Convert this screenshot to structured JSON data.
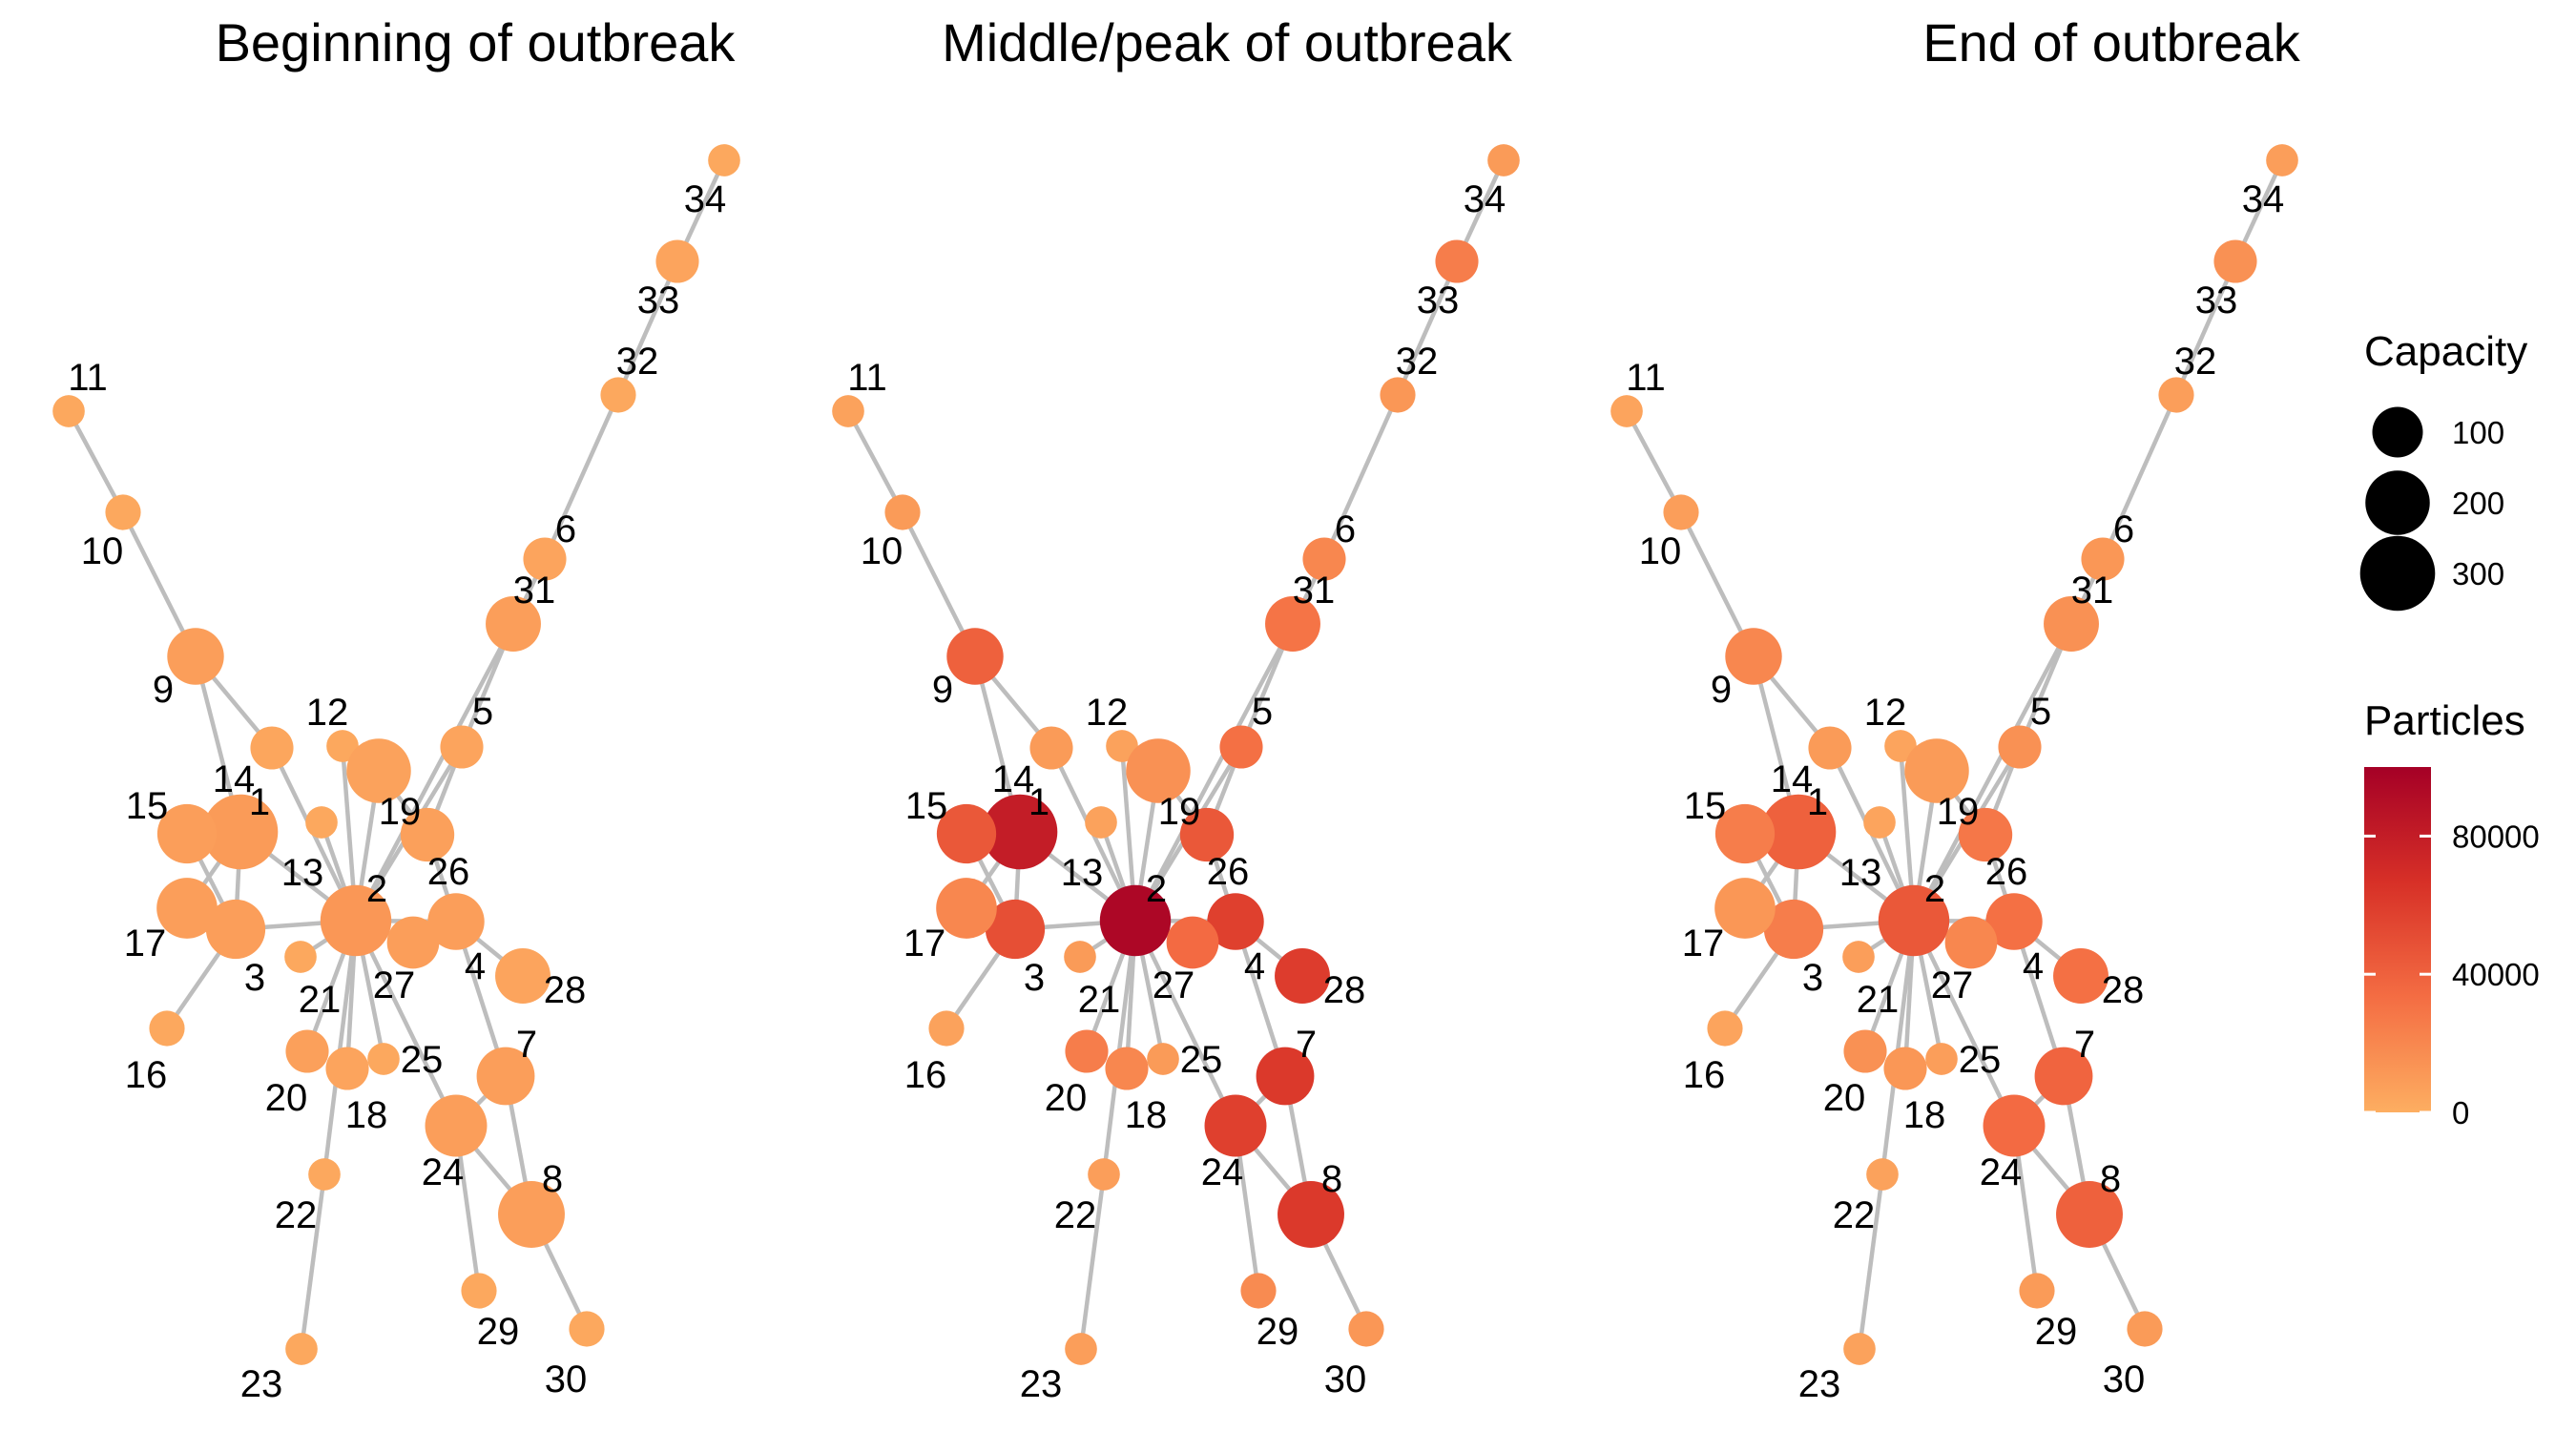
{
  "panels": [
    {
      "key": "beginning",
      "title": "Beginning of outbreak",
      "particles": {
        "1": 10000,
        "2": 12000,
        "3": 8000,
        "4": 8000,
        "5": 5000,
        "6": 5000,
        "7": 8000,
        "8": 8000,
        "9": 8000,
        "10": 3000,
        "11": 3000,
        "12": 3000,
        "13": 3000,
        "14": 4000,
        "15": 8000,
        "16": 3000,
        "17": 8000,
        "18": 5000,
        "19": 6000,
        "20": 7000,
        "21": 3000,
        "22": 3000,
        "23": 3000,
        "24": 8000,
        "25": 3000,
        "26": 7000,
        "27": 8000,
        "28": 5000,
        "29": 3000,
        "30": 3000,
        "31": 8000,
        "32": 3000,
        "33": 5000,
        "34": 3000
      }
    },
    {
      "key": "middle",
      "title": "Middle/peak of outbreak",
      "particles": {
        "1": 80000,
        "2": 95000,
        "3": 50000,
        "4": 58000,
        "5": 32000,
        "6": 20000,
        "7": 62000,
        "8": 62000,
        "9": 40000,
        "10": 10000,
        "11": 6000,
        "12": 6000,
        "13": 6000,
        "14": 10000,
        "15": 45000,
        "16": 6000,
        "17": 20000,
        "18": 20000,
        "19": 15000,
        "20": 25000,
        "21": 10000,
        "22": 8000,
        "23": 8000,
        "24": 58000,
        "25": 10000,
        "26": 45000,
        "27": 35000,
        "28": 60000,
        "29": 18000,
        "30": 12000,
        "31": 30000,
        "32": 12000,
        "33": 25000,
        "34": 10000
      }
    },
    {
      "key": "end",
      "title": "End of outbreak",
      "particles": {
        "1": 40000,
        "2": 45000,
        "3": 25000,
        "4": 32000,
        "5": 15000,
        "6": 12000,
        "7": 38000,
        "8": 40000,
        "9": 20000,
        "10": 8000,
        "11": 5000,
        "12": 5000,
        "13": 5000,
        "14": 10000,
        "15": 25000,
        "16": 5000,
        "17": 12000,
        "18": 12000,
        "19": 10000,
        "20": 15000,
        "21": 8000,
        "22": 6000,
        "23": 6000,
        "24": 35000,
        "25": 8000,
        "26": 28000,
        "27": 20000,
        "28": 32000,
        "29": 10000,
        "30": 10000,
        "31": 15000,
        "32": 8000,
        "33": 15000,
        "34": 8000
      }
    }
  ],
  "nodes": [
    {
      "id": "1",
      "capacity": 300
    },
    {
      "id": "2",
      "capacity": 260
    },
    {
      "id": "3",
      "capacity": 160
    },
    {
      "id": "4",
      "capacity": 140
    },
    {
      "id": "5",
      "capacity": 60
    },
    {
      "id": "6",
      "capacity": 60
    },
    {
      "id": "7",
      "capacity": 150
    },
    {
      "id": "8",
      "capacity": 220
    },
    {
      "id": "9",
      "capacity": 140
    },
    {
      "id": "10",
      "capacity": 30
    },
    {
      "id": "11",
      "capacity": 20
    },
    {
      "id": "12",
      "capacity": 20
    },
    {
      "id": "13",
      "capacity": 20
    },
    {
      "id": "14",
      "capacity": 60
    },
    {
      "id": "15",
      "capacity": 160
    },
    {
      "id": "16",
      "capacity": 30
    },
    {
      "id": "17",
      "capacity": 170
    },
    {
      "id": "18",
      "capacity": 60
    },
    {
      "id": "19",
      "capacity": 200
    },
    {
      "id": "20",
      "capacity": 60
    },
    {
      "id": "21",
      "capacity": 20
    },
    {
      "id": "22",
      "capacity": 20
    },
    {
      "id": "23",
      "capacity": 20
    },
    {
      "id": "24",
      "capacity": 180
    },
    {
      "id": "25",
      "capacity": 20
    },
    {
      "id": "26",
      "capacity": 120
    },
    {
      "id": "27",
      "capacity": 110
    },
    {
      "id": "28",
      "capacity": 130
    },
    {
      "id": "29",
      "capacity": 30
    },
    {
      "id": "30",
      "capacity": 30
    },
    {
      "id": "31",
      "capacity": 130
    },
    {
      "id": "32",
      "capacity": 30
    },
    {
      "id": "33",
      "capacity": 60
    },
    {
      "id": "34",
      "capacity": 20
    }
  ],
  "edges": [
    [
      "11",
      "10"
    ],
    [
      "10",
      "9"
    ],
    [
      "9",
      "14"
    ],
    [
      "9",
      "1"
    ],
    [
      "14",
      "2"
    ],
    [
      "12",
      "2"
    ],
    [
      "13",
      "2"
    ],
    [
      "1",
      "2"
    ],
    [
      "1",
      "3"
    ],
    [
      "1",
      "17"
    ],
    [
      "15",
      "1"
    ],
    [
      "15",
      "3"
    ],
    [
      "17",
      "3"
    ],
    [
      "3",
      "16"
    ],
    [
      "3",
      "2"
    ],
    [
      "2",
      "19"
    ],
    [
      "2",
      "5"
    ],
    [
      "2",
      "4"
    ],
    [
      "2",
      "27"
    ],
    [
      "2",
      "21"
    ],
    [
      "2",
      "20"
    ],
    [
      "2",
      "18"
    ],
    [
      "2",
      "22"
    ],
    [
      "22",
      "23"
    ],
    [
      "2",
      "24"
    ],
    [
      "2",
      "25"
    ],
    [
      "2",
      "31"
    ],
    [
      "27",
      "4"
    ],
    [
      "4",
      "26"
    ],
    [
      "4",
      "28"
    ],
    [
      "4",
      "7"
    ],
    [
      "26",
      "5"
    ],
    [
      "19",
      "26"
    ],
    [
      "5",
      "31"
    ],
    [
      "31",
      "6"
    ],
    [
      "6",
      "32"
    ],
    [
      "32",
      "33"
    ],
    [
      "33",
      "34"
    ],
    [
      "7",
      "24"
    ],
    [
      "7",
      "8"
    ],
    [
      "24",
      "8"
    ],
    [
      "24",
      "29"
    ],
    [
      "8",
      "30"
    ]
  ],
  "legend": {
    "capacity": {
      "title": "Capacity",
      "values": [
        100,
        200,
        300
      ],
      "labels": [
        "100",
        "200",
        "300"
      ]
    },
    "particles": {
      "title": "Particles",
      "range": [
        0,
        100000
      ],
      "tick_values": [
        0,
        40000,
        80000
      ],
      "tick_labels": [
        "0",
        "40000",
        "80000"
      ],
      "colors": [
        "#fdae61",
        "#f46d43",
        "#d73027",
        "#a50026"
      ]
    }
  }
}
